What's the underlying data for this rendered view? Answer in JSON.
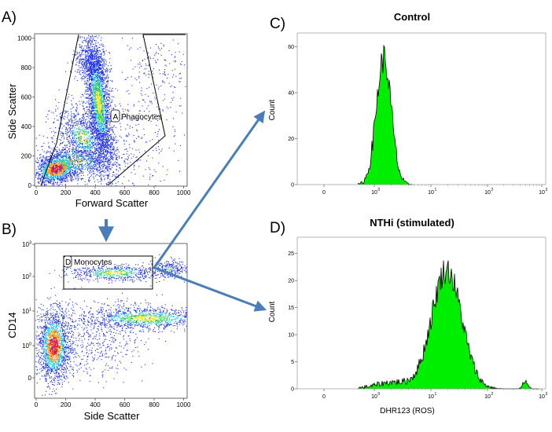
{
  "panels": {
    "a": {
      "label": "A)",
      "x_label": "Forward Scatter",
      "y_label": "Side Scatter",
      "x_ticks": [
        "0",
        "200",
        "400",
        "600",
        "800",
        "1000"
      ],
      "y_ticks": [
        "0",
        "200",
        "400",
        "600",
        "800",
        "1000"
      ],
      "gate": {
        "tag": "A",
        "name": "Phagocytes"
      }
    },
    "b": {
      "label": "B)",
      "x_label": "Side Scatter",
      "y_label": "CD14",
      "x_ticks": [
        "0",
        "200",
        "400",
        "600",
        "800",
        "1000"
      ],
      "y_ticks": [
        {
          "base": "0",
          "exp": ""
        },
        {
          "base": "10",
          "exp": "0"
        },
        {
          "base": "10",
          "exp": "1"
        },
        {
          "base": "10",
          "exp": "2"
        },
        {
          "base": "10",
          "exp": "3"
        }
      ],
      "gate": {
        "tag": "D",
        "name": "Monocytes"
      }
    },
    "c": {
      "label": "C)",
      "title": "Control",
      "y_label": "Count",
      "y_ticks": [
        "0",
        "20",
        "40",
        "60"
      ],
      "x_ticks": [
        {
          "base": "0",
          "exp": ""
        },
        {
          "base": "10",
          "exp": "0"
        },
        {
          "base": "10",
          "exp": "1"
        },
        {
          "base": "10",
          "exp": "2"
        },
        {
          "base": "10",
          "exp": "3"
        }
      ]
    },
    "d": {
      "label": "D)",
      "title": "NTHi (stimulated)",
      "y_label": "Count",
      "x_label": "DHR123 (ROS)",
      "y_ticks": [
        "0",
        "5",
        "10",
        "15",
        "20",
        "25"
      ],
      "x_ticks": [
        {
          "base": "0",
          "exp": ""
        },
        {
          "base": "10",
          "exp": "0"
        },
        {
          "base": "10",
          "exp": "1"
        },
        {
          "base": "10",
          "exp": "2"
        },
        {
          "base": "10",
          "exp": "3"
        }
      ]
    }
  },
  "colors": {
    "arrow": "#4a7ebb",
    "histogram_fill": "#00ee00",
    "dot_blue": "#1a2ee6",
    "dot_cyan": "#1ec8e6",
    "dot_green": "#3cd64a",
    "dot_yellow": "#f2e21c",
    "dot_orange": "#ff9a12",
    "dot_red": "#f41a1a"
  }
}
